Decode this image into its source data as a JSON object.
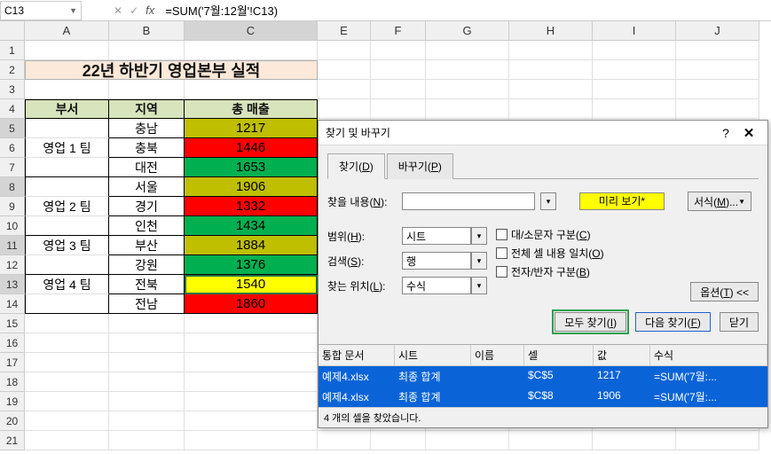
{
  "formula_bar": {
    "name_box": "C13",
    "fx_label": "fx",
    "formula": "=SUM('7월:12월'!C13)"
  },
  "columns": [
    "A",
    "B",
    "C",
    "D",
    "E",
    "F",
    "G",
    "H",
    "I",
    "J"
  ],
  "row_numbers": [
    1,
    2,
    3,
    4,
    5,
    6,
    7,
    8,
    9,
    10,
    11,
    12,
    13,
    14,
    15,
    16,
    17,
    18,
    19,
    20,
    21
  ],
  "selected_rows": [
    5,
    8,
    11,
    13
  ],
  "title": "22년 하반기 영업본부 실적",
  "table": {
    "headers": {
      "dept": "부서",
      "region": "지역",
      "sales": "총 매출"
    },
    "rows": [
      {
        "dept": "영업 1 팀",
        "region": "충남",
        "sales": "1217",
        "color": "olive"
      },
      {
        "dept": "",
        "region": "충북",
        "sales": "1446",
        "color": "red"
      },
      {
        "dept": "",
        "region": "대전",
        "sales": "1653",
        "color": "green"
      },
      {
        "dept": "영업 2 팀",
        "region": "서울",
        "sales": "1906",
        "color": "olive"
      },
      {
        "dept": "",
        "region": "경기",
        "sales": "1332",
        "color": "red"
      },
      {
        "dept": "",
        "region": "인천",
        "sales": "1434",
        "color": "green"
      },
      {
        "dept": "영업 3 팀",
        "region": "부산",
        "sales": "1884",
        "color": "olive"
      },
      {
        "dept": "",
        "region": "강원",
        "sales": "1376",
        "color": "green"
      },
      {
        "dept": "영업 4 팀",
        "region": "전북",
        "sales": "1540",
        "color": "yellow",
        "active": true
      },
      {
        "dept": "",
        "region": "전남",
        "sales": "1860",
        "color": "red"
      }
    ]
  },
  "dialog": {
    "title": "찾기 및 바꾸기",
    "tabs": {
      "find": "찾기(D)",
      "replace": "바꾸기(P)"
    },
    "labels": {
      "find_what": "찾을 내용(N):",
      "preview": "미리 보기*",
      "format": "서식(M)...",
      "scope": "범위(H):",
      "search": "검색(S):",
      "lookin": "찾는 위치(L):"
    },
    "selects": {
      "scope": "시트",
      "search": "행",
      "lookin": "수식"
    },
    "checks": {
      "case": "대/소문자 구분(C)",
      "whole": "전체 셀 내용 일치(O)",
      "width": "전자/반자 구분(B)"
    },
    "options_btn": "옵션(T) <<",
    "buttons": {
      "find_all": "모두 찾기(I)",
      "find_next": "다음 찾기(F)",
      "close": "닫기"
    },
    "results": {
      "headers": {
        "book": "통합 문서",
        "sheet": "시트",
        "name": "이름",
        "cell": "셀",
        "value": "값",
        "formula": "수식"
      },
      "rows": [
        {
          "book": "예제4.xlsx",
          "sheet": "최종 합계",
          "name": "",
          "cell": "$C$5",
          "value": "1217",
          "formula": "=SUM('7월:..."
        },
        {
          "book": "예제4.xlsx",
          "sheet": "최종 합계",
          "name": "",
          "cell": "$C$8",
          "value": "1906",
          "formula": "=SUM('7월:..."
        }
      ]
    },
    "status": "4 개의 셀을 찾았습니다."
  }
}
